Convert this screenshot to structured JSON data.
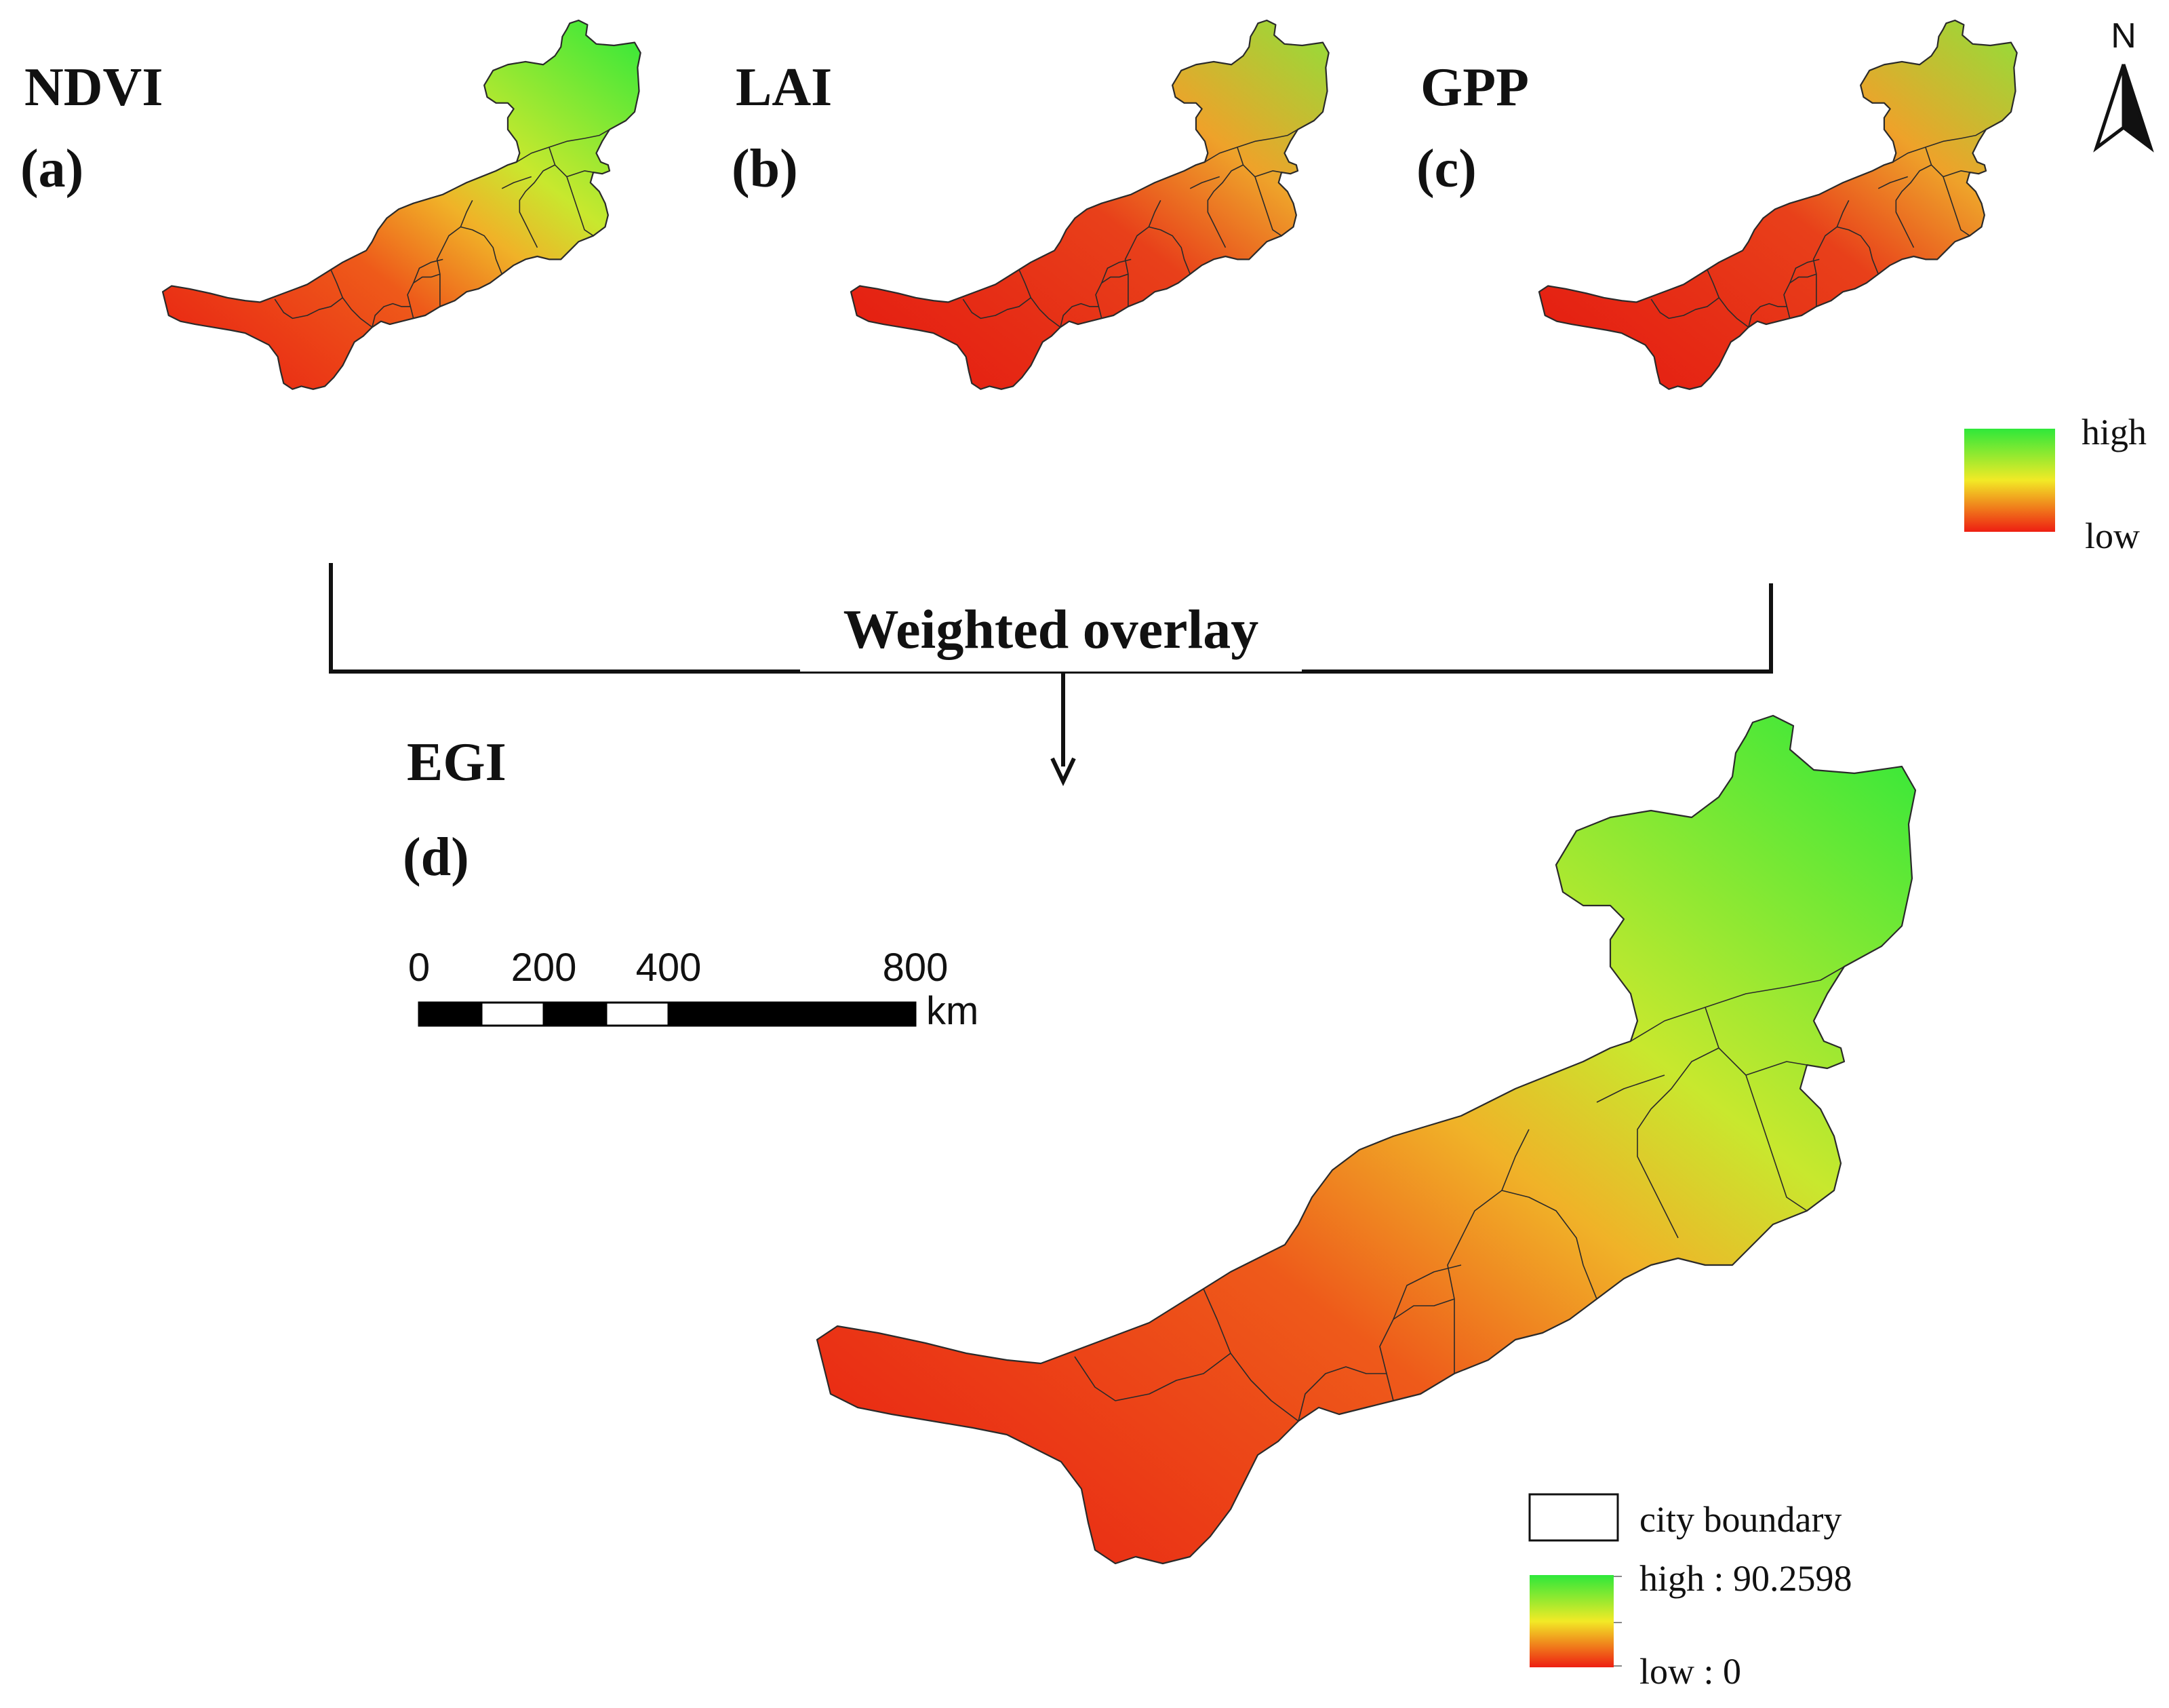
{
  "panels": [
    {
      "id": "a",
      "index_name": "NDVI",
      "tag": "(a)"
    },
    {
      "id": "b",
      "index_name": "LAI",
      "tag": "(b)"
    },
    {
      "id": "c",
      "index_name": "GPP",
      "tag": "(c)"
    },
    {
      "id": "d",
      "index_name": "EGI",
      "tag": "(d)"
    }
  ],
  "flow": {
    "label": "Weighted overlay"
  },
  "north_arrow": {
    "label": "N"
  },
  "small_legend": {
    "high": "high",
    "low": "low"
  },
  "main_legend": {
    "boundary_label": "city boundary",
    "high": "high : 90.2598",
    "low": "low : 0"
  },
  "scale_bar": {
    "ticks": [
      "0",
      "200",
      "400",
      "800"
    ],
    "unit": "km"
  },
  "colors": {
    "high": "#2ee83a",
    "mid": "#f2ea26",
    "low": "#ee1e12",
    "boundary": "#2a2a2a"
  }
}
